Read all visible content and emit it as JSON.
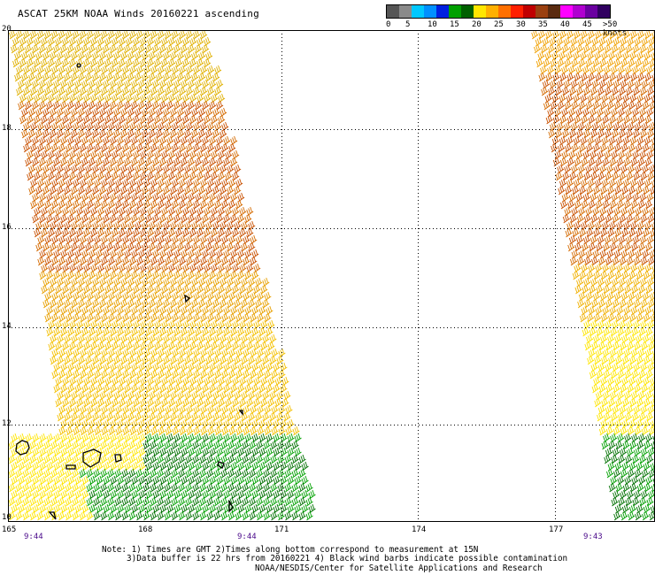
{
  "title": "ASCAT 25KM NOAA Winds 20160221 ascending",
  "legend": {
    "colors": [
      "#555555",
      "#8a8a8a",
      "#00c8ff",
      "#0090ff",
      "#0020e0",
      "#00a000",
      "#006000",
      "#ffe600",
      "#ffb000",
      "#ff7000",
      "#ff2000",
      "#c00000",
      "#9a4010",
      "#5a2a10",
      "#ff00ff",
      "#b000d0",
      "#6a00a0",
      "#300060"
    ],
    "labels": [
      "0",
      "5",
      "10",
      "15",
      "20",
      "25",
      "30",
      "35",
      "40",
      "45",
      ">50 knots"
    ]
  },
  "map": {
    "lat_labels": [
      "20",
      "18",
      "16",
      "14",
      "12",
      "10"
    ],
    "lon_labels": [
      "165",
      "168",
      "171",
      "174",
      "177"
    ],
    "times": [
      "9:44",
      "9:44",
      "9:43"
    ]
  },
  "note": {
    "line1": "Note: 1) Times are GMT 2)Times along bottom correspond to measurement at 15N",
    "line2": "3)Data buffer is 22 hrs from 20160221 4) Black wind barbs indicate possible contamination",
    "line3": "NOAA/NESDIS/Center for Satellite Applications and Research"
  }
}
